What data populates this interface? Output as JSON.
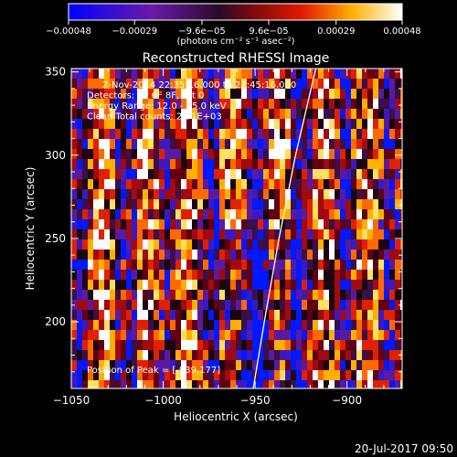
{
  "chart_data": {
    "type": "heatmap",
    "title": "Reconstructed RHESSI Image",
    "xlabel": "Heliocentric X (arcsec)",
    "ylabel": "Heliocentric Y (arcsec)",
    "xlim": [
      -1050,
      -870
    ],
    "ylim": [
      160,
      352
    ],
    "x_ticks": [
      -1050,
      -1000,
      -950,
      -900
    ],
    "x_tick_labels": [
      "−1050",
      "−1000",
      "−950",
      "−900"
    ],
    "y_ticks": [
      200,
      250,
      300,
      350
    ],
    "y_tick_labels": [
      "200",
      "250",
      "300",
      "350"
    ],
    "colorbar": {
      "vmin": -0.00048,
      "vmax": 0.00048,
      "ticks": [
        -0.00048,
        -0.00029,
        -9.6e-05,
        9.6e-05,
        0.00029,
        0.00048
      ],
      "tick_labels": [
        "−0.00048",
        "−0.00029",
        "−9.6e−05",
        "9.6e−05",
        "0.00029",
        "0.00048"
      ],
      "label": "(photons cm⁻² s⁻¹ asec⁻²)",
      "colormap": "blue-purple-red-orange-yellow-white"
    },
    "info_lines": [
      "2-Nov-2014 22:35:16.000 to 22:45:16.000",
      "Detectors: 3F 6F 8F, Att 0",
      "Energy Range: 12.0 - 25.0 keV",
      "Clean     Total counts: 2.91E+03"
    ],
    "peak_label": "Position of Peak = [-939,177]",
    "limb_curve": [
      [
        -951,
        160
      ],
      [
        -945,
        200
      ],
      [
        -937,
        250
      ],
      [
        -928,
        300
      ],
      [
        -917,
        352
      ]
    ],
    "grid": false
  },
  "footer": {
    "timestamp": "20-Jul-2017 09:50"
  },
  "colors": {
    "background": "#000000",
    "text": "#ffffff",
    "axes": "#ffffff"
  }
}
